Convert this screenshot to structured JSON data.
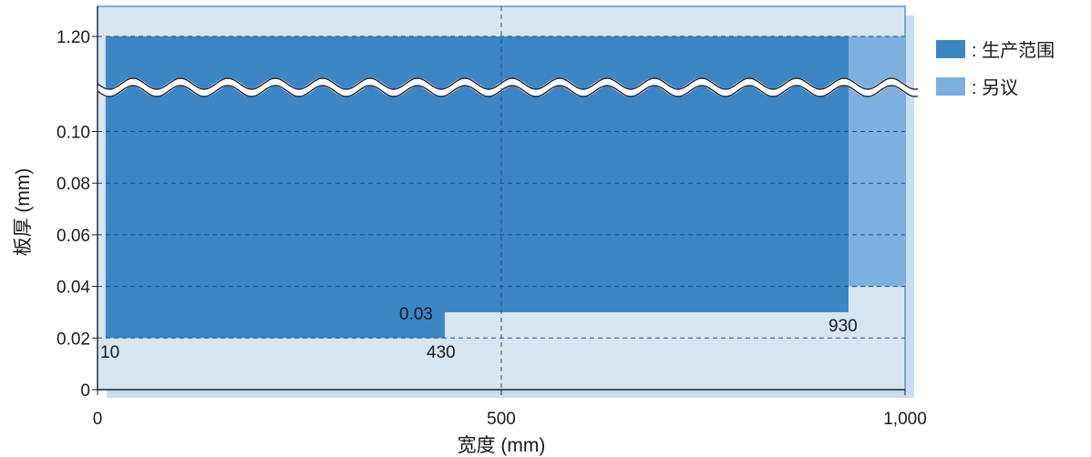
{
  "chart_data": {
    "type": "area",
    "xlabel": "宽度 (mm)",
    "ylabel": "板厚 (mm)",
    "x_ticks": [
      "0",
      "500",
      "1,000"
    ],
    "y_ticks": [
      "0",
      "0.02",
      "0.04",
      "0.06",
      "0.08",
      "0.10",
      "1.20"
    ],
    "y_axis_break": true,
    "xlim": [
      0,
      1000
    ],
    "grid": "dashed",
    "legend_position": "right",
    "series": [
      {
        "name": "生产范围",
        "color": "#3d86c6",
        "regions": [
          {
            "x_range": [
              10,
              430
            ],
            "y_range": [
              0.02,
              1.2
            ]
          },
          {
            "x_range": [
              430,
              930
            ],
            "y_range": [
              0.03,
              1.2
            ]
          }
        ]
      },
      {
        "name": "另议",
        "color": "#7db0de",
        "regions": [
          {
            "x_range": [
              930,
              1000
            ],
            "y_range": [
              0.04,
              1.2
            ]
          }
        ]
      }
    ],
    "annotations": [
      "10",
      "430",
      "930",
      "0.03"
    ],
    "legend": [
      {
        "label": ": 生产范围",
        "color": "#3d86c6"
      },
      {
        "label": ": 另议",
        "color": "#7db0de"
      }
    ]
  }
}
